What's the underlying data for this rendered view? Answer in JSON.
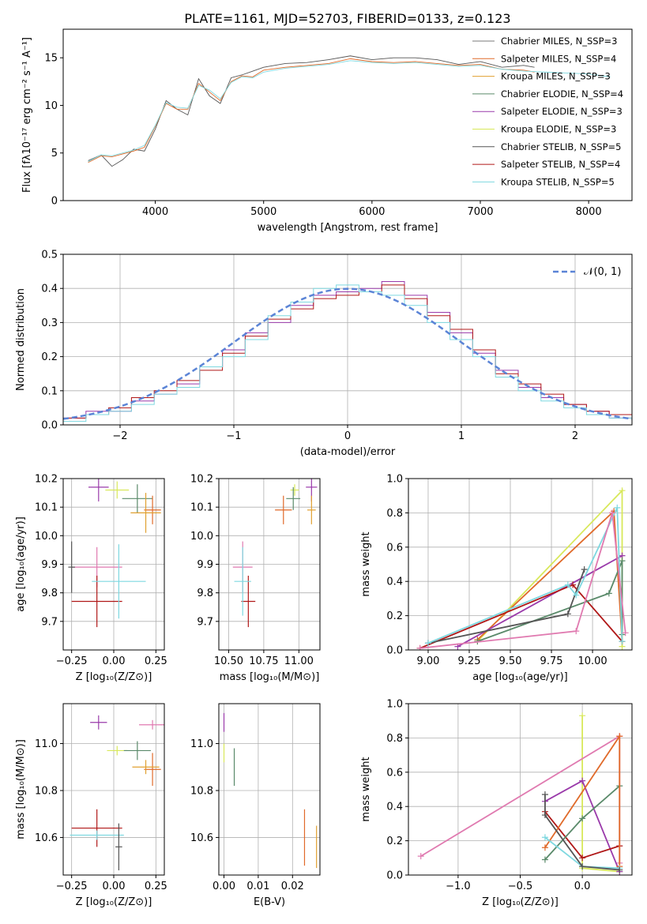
{
  "figure_title": "PLATE=1161, MJD=52703, FIBERID=0133, z=0.123",
  "colors": {
    "chabrier_miles": "#7a7a7a",
    "salpeter_miles": "#e06a2a",
    "kroupa_miles": "#e0a030",
    "chabrier_elodie": "#5a8a6a",
    "salpeter_elodie": "#9a3aaa",
    "kroupa_elodie": "#d8e85a",
    "chabrier_stelib": "#555555",
    "salpeter_stelib": "#b01818",
    "kroupa_stelib": "#7ed8e0",
    "pink": "#e07ab0",
    "gaussian": "#5b84d6"
  },
  "chart_data": [
    {
      "id": "spectrum",
      "type": "line",
      "title": "PLATE=1161, MJD=52703, FIBERID=0133, z=0.123",
      "xlabel": "wavelength [Angstrom, rest frame]",
      "ylabel": "Flux [fλ10⁻¹⁷ erg cm⁻² s⁻¹ A⁻¹]",
      "xlim": [
        3150,
        8400
      ],
      "ylim": [
        0,
        18
      ],
      "xticks": [
        "4000",
        "5000",
        "6000",
        "7000",
        "8000"
      ],
      "yticks": [
        "0",
        "5",
        "10",
        "15"
      ],
      "legend_position": "right",
      "legend": [
        "Chabrier MILES, N_SSP=3",
        "Salpeter MILES, N_SSP=4",
        "Kroupa MILES, N_SSP=3",
        "Chabrier ELODIE, N_SSP=4",
        "Salpeter ELODIE, N_SSP=3",
        "Kroupa ELODIE, N_SSP=3",
        "Chabrier STELIB, N_SSP=5",
        "Salpeter STELIB, N_SSP=4",
        "Kroupa STELIB, N_SSP=5"
      ],
      "series": [
        {
          "name": "Chabrier STELIB, N_SSP=5",
          "x": [
            3380,
            3500,
            3600,
            3700,
            3800,
            3900,
            4000,
            4100,
            4200,
            4300,
            4400,
            4500,
            4600,
            4700,
            4800,
            4900,
            5000,
            5200,
            5400,
            5600,
            5800,
            6000,
            6200,
            6400,
            6600,
            6800,
            7000,
            7200,
            7400,
            7500
          ],
          "y": [
            4.2,
            4.8,
            3.6,
            4.3,
            5.4,
            5.2,
            7.5,
            10.5,
            9.6,
            9.0,
            12.8,
            11.0,
            10.2,
            12.9,
            13.2,
            13.6,
            14.0,
            14.4,
            14.5,
            14.8,
            15.2,
            14.8,
            15.0,
            15.0,
            14.8,
            14.3,
            14.6,
            14.0,
            14.2,
            14.0
          ]
        },
        {
          "name": "Salpeter MILES, N_SSP=4",
          "x": [
            3380,
            3500,
            3600,
            3700,
            3800,
            3900,
            4000,
            4100,
            4200,
            4300,
            4400,
            4500,
            4600,
            4700,
            4800,
            4900,
            5000,
            5200,
            5400,
            5600,
            5800,
            6000,
            6200,
            6400,
            6600,
            6800,
            7000,
            7200,
            7400,
            7500
          ],
          "y": [
            4.0,
            4.7,
            4.6,
            4.9,
            5.2,
            5.6,
            7.8,
            10.2,
            9.6,
            9.6,
            12.3,
            11.4,
            10.5,
            12.5,
            13.1,
            13.0,
            13.7,
            14.0,
            14.2,
            14.4,
            14.9,
            14.6,
            14.5,
            14.6,
            14.4,
            14.2,
            14.3,
            13.8,
            13.7,
            13.5
          ]
        },
        {
          "name": "Kroupa STELIB, N_SSP=5",
          "x": [
            3380,
            3500,
            3600,
            3700,
            3800,
            3900,
            4000,
            4100,
            4200,
            4300,
            4400,
            4500,
            4600,
            4700,
            4800,
            4900,
            5000,
            5200,
            5400,
            5600,
            5800,
            6000,
            6200,
            6400,
            6600,
            6800,
            7000,
            7200,
            7400,
            7600,
            7800,
            8000,
            8200
          ],
          "y": [
            4.1,
            4.8,
            4.7,
            5.0,
            5.3,
            5.8,
            7.9,
            10.3,
            9.8,
            9.7,
            12.1,
            11.6,
            10.7,
            12.4,
            13.0,
            12.9,
            13.5,
            13.9,
            14.1,
            14.3,
            14.7,
            14.5,
            14.4,
            14.5,
            14.3,
            14.1,
            14.2,
            13.8,
            13.6,
            13.5,
            13.4,
            13.3,
            13.0
          ]
        }
      ]
    },
    {
      "id": "residuals",
      "type": "line",
      "xlabel": "(data-model)/error",
      "ylabel": "Normed distribution",
      "xlim": [
        -2.5,
        2.5
      ],
      "ylim": [
        0,
        0.5
      ],
      "xticks": [
        "−2",
        "−1",
        "0",
        "1",
        "2"
      ],
      "yticks": [
        "0.0",
        "0.1",
        "0.2",
        "0.3",
        "0.4",
        "0.5"
      ],
      "legend_position": "top-right",
      "legend": [
        "𝒩(0, 1)"
      ],
      "bin_centers": [
        -2.4,
        -2.2,
        -2.0,
        -1.8,
        -1.6,
        -1.4,
        -1.2,
        -1.0,
        -0.8,
        -0.6,
        -0.4,
        -0.2,
        0.0,
        0.2,
        0.4,
        0.6,
        0.8,
        1.0,
        1.2,
        1.4,
        1.6,
        1.8,
        2.0,
        2.2,
        2.4
      ],
      "series": [
        {
          "name": "Salpeter ELODIE",
          "values": [
            0.02,
            0.04,
            0.04,
            0.07,
            0.09,
            0.12,
            0.17,
            0.22,
            0.27,
            0.3,
            0.35,
            0.38,
            0.39,
            0.4,
            0.42,
            0.38,
            0.33,
            0.27,
            0.21,
            0.16,
            0.11,
            0.08,
            0.06,
            0.04,
            0.02
          ]
        },
        {
          "name": "Salpeter STELIB",
          "values": [
            0.02,
            0.03,
            0.05,
            0.08,
            0.1,
            0.13,
            0.16,
            0.21,
            0.26,
            0.31,
            0.34,
            0.37,
            0.38,
            0.39,
            0.41,
            0.37,
            0.32,
            0.28,
            0.22,
            0.15,
            0.12,
            0.09,
            0.06,
            0.04,
            0.03
          ]
        },
        {
          "name": "Kroupa STELIB",
          "values": [
            0.01,
            0.03,
            0.04,
            0.06,
            0.09,
            0.11,
            0.17,
            0.2,
            0.25,
            0.32,
            0.36,
            0.4,
            0.41,
            0.39,
            0.38,
            0.35,
            0.3,
            0.25,
            0.2,
            0.14,
            0.1,
            0.07,
            0.05,
            0.03,
            0.02
          ]
        }
      ],
      "gaussian": {
        "name": "𝒩(0, 1)",
        "mean": 0,
        "sigma": 1
      }
    },
    {
      "id": "age_vs_z",
      "type": "scatter",
      "xlabel": "Z [log₁₀(Z/Z⊙)]",
      "ylabel": "age  [log₁₀(age/yr)]",
      "xlim": [
        -0.3,
        0.3
      ],
      "ylim": [
        9.6,
        10.2
      ],
      "xticks": [
        "−0.25",
        "0.00",
        "0.25"
      ],
      "yticks": [
        "9.7",
        "9.8",
        "9.9",
        "10.0",
        "10.1",
        "10.2"
      ],
      "points": [
        {
          "x": -0.09,
          "y": 10.17,
          "xerr": 0.06,
          "yerr": 0.05
        },
        {
          "x": 0.02,
          "y": 10.16,
          "xerr": 0.07,
          "yerr": 0.03
        },
        {
          "x": 0.14,
          "y": 10.13,
          "xerr": 0.09,
          "yerr": 0.05
        },
        {
          "x": 0.23,
          "y": 10.09,
          "xerr": 0.05,
          "yerr": 0.05
        },
        {
          "x": 0.19,
          "y": 10.08,
          "xerr": 0.09,
          "yerr": 0.07
        },
        {
          "x": -0.1,
          "y": 9.89,
          "xerr": 0.15,
          "yerr": 0.07
        },
        {
          "x": -0.1,
          "y": 9.77,
          "xerr": 0.15,
          "yerr": 0.09
        },
        {
          "x": 0.03,
          "y": 9.84,
          "xerr": 0.16,
          "yerr": 0.13
        },
        {
          "x": -0.25,
          "y": 9.89,
          "xerr": 0.02,
          "yerr": 0.09
        }
      ]
    },
    {
      "id": "age_vs_mass",
      "type": "scatter",
      "xlabel": "mass [log₁₀(M/M⊙)]",
      "ylabel": "",
      "xlim": [
        10.43,
        11.15
      ],
      "ylim": [
        9.6,
        10.2
      ],
      "xticks": [
        "10.50",
        "10.75",
        "11.00"
      ],
      "yticks": [
        "9.7",
        "9.8",
        "9.9",
        "10.0",
        "10.1",
        "10.2"
      ],
      "points": [
        {
          "x": 11.09,
          "y": 10.17,
          "xerr": 0.04,
          "yerr": 0.05
        },
        {
          "x": 10.97,
          "y": 10.16,
          "xerr": 0.03,
          "yerr": 0.02
        },
        {
          "x": 10.96,
          "y": 10.13,
          "xerr": 0.05,
          "yerr": 0.04
        },
        {
          "x": 10.89,
          "y": 10.09,
          "xerr": 0.06,
          "yerr": 0.05
        },
        {
          "x": 11.09,
          "y": 10.09,
          "xerr": 0.03,
          "yerr": 0.05
        },
        {
          "x": 10.6,
          "y": 9.89,
          "xerr": 0.07,
          "yerr": 0.09
        },
        {
          "x": 10.64,
          "y": 9.77,
          "xerr": 0.05,
          "yerr": 0.09
        },
        {
          "x": 10.6,
          "y": 9.84,
          "xerr": 0.06,
          "yerr": 0.12
        }
      ]
    },
    {
      "id": "weight_vs_age",
      "type": "line",
      "xlabel": "age  [log₁₀(age/yr)]",
      "ylabel": "mass weight",
      "xlim": [
        8.88,
        10.24
      ],
      "ylim": [
        0,
        1.0
      ],
      "xticks": [
        "9.00",
        "9.25",
        "9.50",
        "9.75",
        "10.00"
      ],
      "yticks": [
        "0.0",
        "0.2",
        "0.4",
        "0.6",
        "0.8",
        "1.0"
      ],
      "series": [
        {
          "name": "Kroupa ELODIE",
          "x": [
            9.3,
            10.18,
            10.18
          ],
          "y": [
            0.05,
            0.93,
            0.02
          ]
        },
        {
          "name": "Salpeter MILES",
          "x": [
            9.3,
            10.13,
            10.18
          ],
          "y": [
            0.06,
            0.81,
            0.05
          ]
        },
        {
          "name": "Salpeter ELODIE",
          "x": [
            9.18,
            10.18
          ],
          "y": [
            0.02,
            0.55
          ]
        },
        {
          "name": "Salpeter STELIB",
          "x": [
            8.95,
            9.88,
            10.18
          ],
          "y": [
            0.01,
            0.38,
            0.05
          ]
        },
        {
          "name": "Chabrier ELODIE",
          "x": [
            9.3,
            10.1,
            10.18,
            10.18
          ],
          "y": [
            0.05,
            0.33,
            0.52,
            0.09
          ]
        },
        {
          "name": "Chabrier STELIB",
          "x": [
            9.0,
            9.85,
            9.95
          ],
          "y": [
            0.04,
            0.21,
            0.47
          ]
        },
        {
          "name": "Kroupa STELIB",
          "x": [
            9.0,
            9.85,
            9.9,
            10.15,
            10.18
          ],
          "y": [
            0.04,
            0.38,
            0.32,
            0.83,
            0.05
          ]
        },
        {
          "name": "pink",
          "x": [
            8.95,
            9.9,
            10.12,
            10.2
          ],
          "y": [
            0.01,
            0.11,
            0.8,
            0.1
          ]
        }
      ]
    },
    {
      "id": "mass_vs_z",
      "type": "scatter",
      "xlabel": "Z [log₁₀(Z/Z⊙)]",
      "ylabel": "mass [log₁₀(M/M⊙)]",
      "xlim": [
        -0.3,
        0.3
      ],
      "ylim": [
        10.44,
        11.17
      ],
      "xticks": [
        "−0.25",
        "0.00",
        "0.25"
      ],
      "yticks": [
        "10.6",
        "10.8",
        "11.0"
      ],
      "points": [
        {
          "x": -0.09,
          "y": 11.09,
          "xerr": 0.05,
          "yerr": 0.03
        },
        {
          "x": 0.02,
          "y": 10.97,
          "xerr": 0.06,
          "yerr": 0.02
        },
        {
          "x": 0.14,
          "y": 10.97,
          "xerr": 0.08,
          "yerr": 0.04
        },
        {
          "x": 0.23,
          "y": 10.89,
          "xerr": 0.05,
          "yerr": 0.07
        },
        {
          "x": 0.19,
          "y": 10.9,
          "xerr": 0.08,
          "yerr": 0.03
        },
        {
          "x": 0.23,
          "y": 11.08,
          "xerr": 0.08,
          "yerr": 0.02
        },
        {
          "x": -0.1,
          "y": 10.64,
          "xerr": 0.15,
          "yerr": 0.08
        },
        {
          "x": -0.1,
          "y": 10.61,
          "xerr": 0.16,
          "yerr": 0.02
        },
        {
          "x": 0.03,
          "y": 10.56,
          "xerr": 0.02,
          "yerr": 0.1
        }
      ]
    },
    {
      "id": "mass_vs_ebv",
      "type": "scatter",
      "xlabel": "E(B-V)",
      "ylabel": "",
      "xlim": [
        -0.0015,
        0.028
      ],
      "ylim": [
        10.44,
        11.17
      ],
      "xticks": [
        "0.00",
        "0.01",
        "0.02"
      ],
      "yticks": [
        "10.6",
        "10.8",
        "11.0"
      ],
      "points": [
        {
          "x": 0.0,
          "y": 11.09,
          "yerr": 0.04
        },
        {
          "x": 0.0,
          "y": 10.96,
          "yerr": 0.04
        },
        {
          "x": 0.003,
          "y": 10.9,
          "yerr": 0.08
        },
        {
          "x": 0.0235,
          "y": 10.6,
          "yerr": 0.12
        },
        {
          "x": 0.027,
          "y": 10.56,
          "yerr": 0.09
        }
      ]
    },
    {
      "id": "weight_vs_z",
      "type": "line",
      "xlabel": "Z [log₁₀(Z/Z⊙)]",
      "ylabel": "mass weight",
      "xlim": [
        -1.4,
        0.4
      ],
      "ylim": [
        0,
        1.0
      ],
      "xticks": [
        "−1.0",
        "−0.5",
        "0.0"
      ],
      "yticks": [
        "0.0",
        "0.2",
        "0.4",
        "0.6",
        "0.8",
        "1.0"
      ],
      "series": [
        {
          "name": "Kroupa ELODIE",
          "x": [
            0.0,
            0.0,
            0.3
          ],
          "y": [
            0.93,
            0.04,
            0.02
          ]
        },
        {
          "name": "pink",
          "x": [
            -1.3,
            0.3,
            0.3
          ],
          "y": [
            0.11,
            0.81,
            0.07
          ]
        },
        {
          "name": "Salpeter ELODIE",
          "x": [
            -0.3,
            0.0,
            0.3
          ],
          "y": [
            0.43,
            0.55,
            0.02
          ]
        },
        {
          "name": "Salpeter STELIB",
          "x": [
            -0.3,
            0.0,
            0.3
          ],
          "y": [
            0.37,
            0.1,
            0.17
          ]
        },
        {
          "name": "Chabrier ELODIE",
          "x": [
            -0.3,
            0.0,
            0.3
          ],
          "y": [
            0.09,
            0.33,
            0.52
          ]
        },
        {
          "name": "Salpeter MILES",
          "x": [
            -0.3,
            0.3,
            0.3
          ],
          "y": [
            0.16,
            0.81,
            0.05
          ]
        },
        {
          "name": "Kroupa STELIB",
          "x": [
            -0.3,
            0.0,
            0.3
          ],
          "y": [
            0.22,
            0.05,
            0.04
          ]
        },
        {
          "name": "Chabrier STELIB",
          "x": [
            -0.3,
            -0.3,
            0.0,
            0.3
          ],
          "y": [
            0.47,
            0.35,
            0.05,
            0.03
          ]
        }
      ]
    }
  ]
}
